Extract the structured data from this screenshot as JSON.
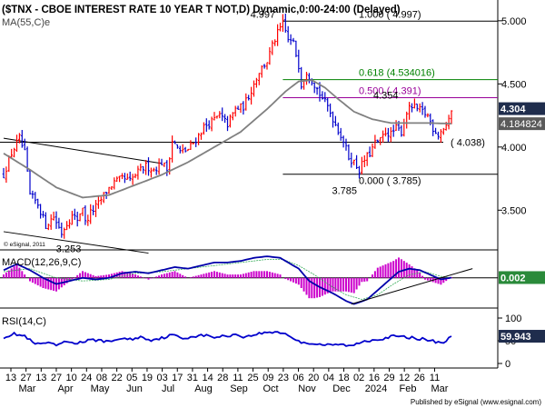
{
  "header": {
    "title": "($TNX - CBOE INTEREST RATE 10 YEAR T NOT,D) Dynamic,0:00-24:00 (Delayed)",
    "ma_label": "MA(55,C)e",
    "copyright": "© eSignal, 2011",
    "published": "Published by eSignal (www.esignal.com)"
  },
  "colors": {
    "up_bar": "#ff0000",
    "down_bar": "#0000cc",
    "ma": "#808080",
    "fib_0618": "#008000",
    "fib_0500": "#990099",
    "macd": "#0000aa",
    "signal": "#cc00cc",
    "rsi": "#0000cc",
    "price_tag_bg": "#1f2d4d",
    "ma_tag_bg": "#5a5a5a"
  },
  "chart_data": [
    {
      "type": "candlestick",
      "panel": "price",
      "title": "($TNX - CBOE INTEREST RATE 10 YEAR T NOT,D) Dynamic,0:00-24:00 (Delayed)",
      "ylim": [
        3.2,
        5.15
      ],
      "y_ticks": [
        3.5,
        4.0,
        4.5,
        5.0
      ],
      "y_tick_labels": [
        "3.500",
        "4.000",
        "4.500",
        "5.000"
      ],
      "x_tick_labels": [
        "13",
        "27",
        "13",
        "27",
        "10",
        "24",
        "08",
        "22",
        "05",
        "19",
        "03",
        "17",
        "31",
        "14",
        "28",
        "11",
        "25",
        "09",
        "23",
        "06",
        "20",
        "04",
        "18",
        "02",
        "16",
        "29",
        "12",
        "26",
        "11"
      ],
      "month_labels": [
        "Mar",
        "Apr",
        "May",
        "Jun",
        "Jul",
        "Aug",
        "Sep",
        "Oct",
        "Nov",
        "Dec",
        "2024",
        "Feb",
        "Mar"
      ],
      "price_path": [
        [
          0,
          3.78
        ],
        [
          3,
          3.95
        ],
        [
          6,
          4.07
        ],
        [
          8,
          3.95
        ],
        [
          10,
          3.62
        ],
        [
          13,
          3.55
        ],
        [
          16,
          3.38
        ],
        [
          19,
          3.45
        ],
        [
          22,
          3.32
        ],
        [
          24,
          3.4
        ],
        [
          26,
          3.45
        ],
        [
          28,
          3.43
        ],
        [
          30,
          3.53
        ],
        [
          31,
          3.4
        ],
        [
          33,
          3.48
        ],
        [
          36,
          3.55
        ],
        [
          39,
          3.65
        ],
        [
          42,
          3.72
        ],
        [
          45,
          3.75
        ],
        [
          48,
          3.73
        ],
        [
          51,
          3.8
        ],
        [
          54,
          3.85
        ],
        [
          57,
          3.82
        ],
        [
          60,
          3.88
        ],
        [
          62,
          3.82
        ],
        [
          64,
          4.05
        ],
        [
          67,
          3.96
        ],
        [
          70,
          3.98
        ],
        [
          73,
          4.06
        ],
        [
          76,
          4.16
        ],
        [
          79,
          4.2
        ],
        [
          82,
          4.25
        ],
        [
          85,
          4.18
        ],
        [
          88,
          4.3
        ],
        [
          91,
          4.32
        ],
        [
          94,
          4.45
        ],
        [
          97,
          4.6
        ],
        [
          100,
          4.68
        ],
        [
          102,
          4.8
        ],
        [
          104,
          4.9
        ],
        [
          106,
          4.98
        ],
        [
          108,
          4.85
        ],
        [
          110,
          4.82
        ],
        [
          112,
          4.65
        ],
        [
          113,
          4.5
        ],
        [
          115,
          4.6
        ],
        [
          118,
          4.5
        ],
        [
          120,
          4.42
        ],
        [
          123,
          4.32
        ],
        [
          126,
          4.18
        ],
        [
          129,
          4.05
        ],
        [
          131,
          3.92
        ],
        [
          133,
          3.88
        ],
        [
          135,
          3.82
        ],
        [
          137,
          3.9
        ],
        [
          139,
          3.95
        ],
        [
          141,
          4.03
        ],
        [
          143,
          4.05
        ],
        [
          145,
          4.12
        ],
        [
          147,
          4.1
        ],
        [
          149,
          4.15
        ],
        [
          151,
          4.12
        ],
        [
          153,
          4.28
        ],
        [
          155,
          4.32
        ],
        [
          157,
          4.3
        ],
        [
          159,
          4.28
        ],
        [
          161,
          4.25
        ],
        [
          163,
          4.15
        ],
        [
          165,
          4.1
        ],
        [
          167,
          4.15
        ],
        [
          169,
          4.2
        ],
        [
          170,
          4.304
        ]
      ],
      "ma_path": [
        [
          0,
          3.95
        ],
        [
          10,
          3.82
        ],
        [
          20,
          3.68
        ],
        [
          30,
          3.6
        ],
        [
          40,
          3.62
        ],
        [
          50,
          3.7
        ],
        [
          60,
          3.78
        ],
        [
          70,
          3.88
        ],
        [
          80,
          4.0
        ],
        [
          90,
          4.12
        ],
        [
          100,
          4.3
        ],
        [
          107,
          4.44
        ],
        [
          112,
          4.52
        ],
        [
          117,
          4.53
        ],
        [
          122,
          4.47
        ],
        [
          127,
          4.38
        ],
        [
          133,
          4.28
        ],
        [
          140,
          4.22
        ],
        [
          147,
          4.19
        ],
        [
          155,
          4.19
        ],
        [
          162,
          4.19
        ],
        [
          170,
          4.185
        ]
      ],
      "last_price": 4.304,
      "ma_value": 4.184824,
      "fibonacci": [
        {
          "ratio_label": "1.000 ( 4.997)",
          "value": 4.997
        },
        {
          "ratio_label": "0.618 (4.534016)",
          "value": 4.534016
        },
        {
          "ratio_label": "0.500 ( 4.391)",
          "value": 4.391
        },
        {
          "ratio_label": "0.000 ( 3.785)",
          "value": 3.785
        }
      ],
      "support_line": {
        "label": "( 4.038)",
        "value": 4.038
      },
      "annotations": [
        {
          "text": "4.997",
          "value": 4.997,
          "bar": 104
        },
        {
          "text": "4.354",
          "value": 4.354,
          "bar": 150
        },
        {
          "text": "3.785",
          "value": 3.785,
          "bar": 135
        },
        {
          "text": "3.253",
          "value": 3.253,
          "bar": 22
        }
      ],
      "channel_upper": [
        [
          0,
          4.07
        ],
        [
          60,
          3.87
        ]
      ],
      "channel_lower": [
        [
          0,
          3.33
        ],
        [
          55,
          3.16
        ]
      ]
    },
    {
      "type": "line",
      "panel": "macd",
      "title": "MACD(12,26,9,C)",
      "last_value": 0.002,
      "last_value_label": "0.002",
      "ylim": [
        -0.19,
        0.17
      ],
      "macd_path": [
        [
          0,
          0.05
        ],
        [
          5,
          0.09
        ],
        [
          10,
          0.05
        ],
        [
          15,
          0.0
        ],
        [
          20,
          -0.04
        ],
        [
          25,
          -0.02
        ],
        [
          30,
          0.0
        ],
        [
          35,
          -0.01
        ],
        [
          40,
          0.0
        ],
        [
          45,
          0.03
        ],
        [
          50,
          0.04
        ],
        [
          55,
          0.03
        ],
        [
          60,
          0.05
        ],
        [
          65,
          0.07
        ],
        [
          70,
          0.06
        ],
        [
          75,
          0.08
        ],
        [
          80,
          0.1
        ],
        [
          85,
          0.1
        ],
        [
          90,
          0.11
        ],
        [
          95,
          0.13
        ],
        [
          100,
          0.14
        ],
        [
          105,
          0.13
        ],
        [
          108,
          0.1
        ],
        [
          112,
          0.06
        ],
        [
          116,
          -0.02
        ],
        [
          120,
          -0.06
        ],
        [
          125,
          -0.1
        ],
        [
          130,
          -0.15
        ],
        [
          133,
          -0.17
        ],
        [
          138,
          -0.14
        ],
        [
          142,
          -0.08
        ],
        [
          146,
          -0.02
        ],
        [
          150,
          0.04
        ],
        [
          154,
          0.06
        ],
        [
          158,
          0.05
        ],
        [
          162,
          0.02
        ],
        [
          166,
          -0.01
        ],
        [
          170,
          0.002
        ]
      ],
      "signal_path": [
        [
          0,
          0.04
        ],
        [
          10,
          0.06
        ],
        [
          20,
          0.0
        ],
        [
          30,
          -0.02
        ],
        [
          40,
          -0.01
        ],
        [
          50,
          0.03
        ],
        [
          60,
          0.04
        ],
        [
          70,
          0.06
        ],
        [
          80,
          0.08
        ],
        [
          90,
          0.1
        ],
        [
          100,
          0.12
        ],
        [
          106,
          0.12
        ],
        [
          112,
          0.08
        ],
        [
          118,
          0.02
        ],
        [
          124,
          -0.05
        ],
        [
          130,
          -0.11
        ],
        [
          136,
          -0.14
        ],
        [
          142,
          -0.11
        ],
        [
          148,
          -0.04
        ],
        [
          154,
          0.02
        ],
        [
          160,
          0.04
        ],
        [
          166,
          0.01
        ],
        [
          170,
          0.0
        ]
      ],
      "trendline": [
        [
          132,
          -0.17
        ],
        [
          178,
          0.06
        ]
      ]
    },
    {
      "type": "line",
      "panel": "rsi",
      "title": "RSI(14,C)",
      "last_value": 59.943,
      "last_value_label": "59.943",
      "ylim": [
        0,
        100
      ],
      "y_ticks": [
        0,
        50,
        100
      ],
      "y_tick_labels": [
        "0",
        "50",
        "100"
      ],
      "rsi_path": [
        [
          0,
          58
        ],
        [
          4,
          65
        ],
        [
          8,
          60
        ],
        [
          12,
          42
        ],
        [
          16,
          45
        ],
        [
          20,
          40
        ],
        [
          24,
          48
        ],
        [
          28,
          45
        ],
        [
          32,
          50
        ],
        [
          36,
          52
        ],
        [
          40,
          47
        ],
        [
          44,
          55
        ],
        [
          48,
          53
        ],
        [
          52,
          58
        ],
        [
          56,
          52
        ],
        [
          60,
          56
        ],
        [
          64,
          63
        ],
        [
          68,
          55
        ],
        [
          72,
          60
        ],
        [
          76,
          62
        ],
        [
          80,
          58
        ],
        [
          84,
          60
        ],
        [
          88,
          64
        ],
        [
          92,
          58
        ],
        [
          96,
          65
        ],
        [
          100,
          68
        ],
        [
          104,
          70
        ],
        [
          108,
          63
        ],
        [
          112,
          48
        ],
        [
          116,
          45
        ],
        [
          120,
          42
        ],
        [
          124,
          40
        ],
        [
          128,
          42
        ],
        [
          132,
          38
        ],
        [
          136,
          48
        ],
        [
          140,
          52
        ],
        [
          144,
          55
        ],
        [
          148,
          60
        ],
        [
          152,
          58
        ],
        [
          156,
          56
        ],
        [
          160,
          53
        ],
        [
          164,
          48
        ],
        [
          167,
          46
        ],
        [
          170,
          59.943
        ]
      ]
    }
  ]
}
